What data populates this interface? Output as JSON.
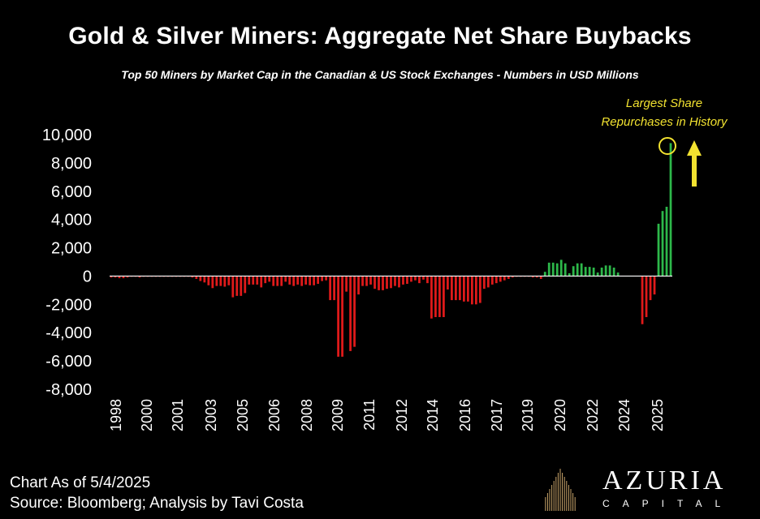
{
  "title": "Gold & Silver Miners: Aggregate Net Share Buybacks",
  "subtitle": "Top 50 Miners by Market Cap in the Canadian & US Stock Exchanges - Numbers in USD Millions",
  "annotation": {
    "line1": "Largest Share",
    "line2": "Repurchases in History"
  },
  "footer": {
    "line1": "Chart As of 5/4/2025",
    "line2": "Source: Bloomberg; Analysis by Tavi Costa"
  },
  "brand": {
    "name": "AZURIA",
    "sub": "CAPITAL"
  },
  "colors": {
    "positive": "#2db84a",
    "negative": "#e01a1a",
    "annotation": "#f2e230"
  },
  "chart_data": {
    "type": "bar",
    "title": "Gold & Silver Miners: Aggregate Net Share Buybacks",
    "ylim": [
      -8000,
      10000
    ],
    "y_ticks": [
      "10,000",
      "8,000",
      "6,000",
      "4,000",
      "2,000",
      "0",
      "-2,000",
      "-4,000",
      "-6,000",
      "-8,000"
    ],
    "x_tick_labels": [
      "1998",
      "2000",
      "2001",
      "2003",
      "2005",
      "2006",
      "2008",
      "2009",
      "2011",
      "2012",
      "2014",
      "2016",
      "2017",
      "2019",
      "2020",
      "2022",
      "2024",
      "2025"
    ],
    "series": [
      {
        "values": [
          -100,
          -100,
          -150,
          -150,
          -100,
          -50,
          -50,
          -100,
          -50,
          -50,
          -50,
          -50,
          -50,
          -50,
          -50,
          -50,
          -50,
          -50,
          -50,
          -50,
          -100,
          -200,
          -350,
          -450,
          -650,
          -850,
          -700,
          -700,
          -750,
          -650,
          -1500,
          -1400,
          -1400,
          -1200,
          -600,
          -600,
          -600,
          -800,
          -500,
          -400,
          -700,
          -700,
          -700,
          -400,
          -600,
          -700,
          -600,
          -700,
          -600,
          -650,
          -650,
          -550,
          -350,
          -300,
          -1700,
          -1700,
          -5700,
          -5700,
          -1100,
          -5300,
          -5000,
          -1300,
          -700,
          -700,
          -600,
          -900,
          -1000,
          -1000,
          -900,
          -850,
          -700,
          -800,
          -600,
          -550,
          -400,
          -300,
          -500,
          -250,
          -500,
          -3000,
          -2900,
          -2900,
          -2900,
          -950,
          -1700,
          -1700,
          -1700,
          -1800,
          -1800,
          -2000,
          -2000,
          -1900,
          -900,
          -800,
          -600,
          -500,
          -400,
          -300,
          -200,
          -100,
          -50,
          -50,
          -50,
          -50,
          -100,
          -100,
          -200,
          300,
          950,
          950,
          900,
          1150,
          900,
          200,
          700,
          900,
          900,
          650,
          650,
          600,
          250,
          600,
          750,
          750,
          600,
          250,
          0,
          0,
          0,
          0,
          0,
          -3400,
          -2900,
          -1700,
          -1300,
          3700,
          4600,
          4900,
          9400
        ]
      }
    ]
  }
}
